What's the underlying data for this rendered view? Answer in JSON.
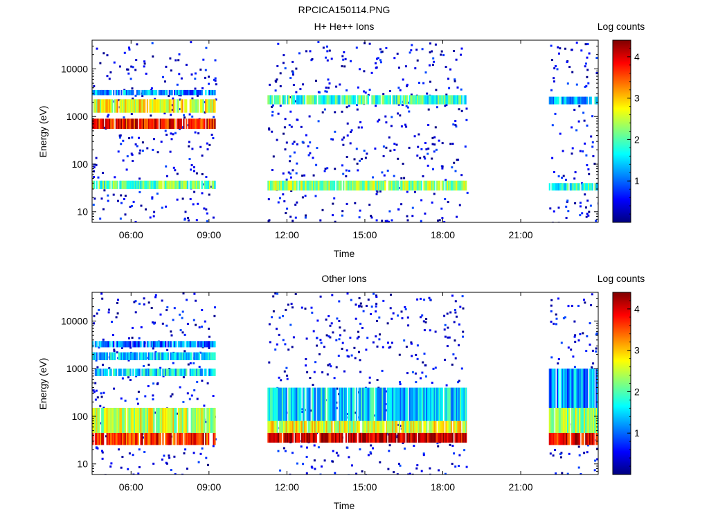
{
  "figure_title": "RPCICA150114.PNG",
  "colors": {
    "colormap": [
      "#00007f",
      "#0000ff",
      "#007fff",
      "#00ffff",
      "#7fff7f",
      "#ffff00",
      "#ff7f00",
      "#ff0000",
      "#7f0000"
    ],
    "background": "#ffffff",
    "axis": "#000000"
  },
  "chart_data": [
    {
      "type": "heatmap",
      "title": "H+ He++ Ions",
      "xlabel": "Time",
      "ylabel": "Energy (eV)",
      "y_scale": "log",
      "x_ticks": [
        "06:00",
        "09:00",
        "12:00",
        "15:00",
        "18:00",
        "21:00"
      ],
      "y_ticks": [
        "10",
        "100",
        "1000",
        "10000"
      ],
      "xlim": [
        "04:30",
        "23:59"
      ],
      "ylim": [
        6,
        40000
      ],
      "colorbar": {
        "label": "Log counts",
        "range": [
          0,
          4.4
        ],
        "ticks": [
          "1",
          "2",
          "3",
          "4"
        ]
      },
      "data_intervals": [
        [
          "04:30",
          "09:15"
        ],
        [
          "11:15",
          "18:55"
        ],
        [
          "22:05",
          "23:59"
        ]
      ],
      "bands": [
        {
          "interval": 0,
          "e_low": 30,
          "e_high": 45,
          "level": 2.0
        },
        {
          "interval": 0,
          "e_low": 550,
          "e_high": 900,
          "level": 3.8
        },
        {
          "interval": 0,
          "e_low": 1200,
          "e_high": 2300,
          "level": 2.7
        },
        {
          "interval": 0,
          "e_low": 2800,
          "e_high": 3600,
          "level": 1.2
        },
        {
          "interval": 1,
          "e_low": 28,
          "e_high": 45,
          "level": 2.3
        },
        {
          "interval": 1,
          "e_low": 1800,
          "e_high": 2800,
          "level": 1.9
        },
        {
          "interval": 2,
          "e_low": 28,
          "e_high": 40,
          "level": 1.8
        },
        {
          "interval": 2,
          "e_low": 1800,
          "e_high": 2600,
          "level": 1.4
        }
      ]
    },
    {
      "type": "heatmap",
      "title": "Other Ions",
      "xlabel": "Time",
      "ylabel": "Energy (eV)",
      "y_scale": "log",
      "x_ticks": [
        "06:00",
        "09:00",
        "12:00",
        "15:00",
        "18:00",
        "21:00"
      ],
      "y_ticks": [
        "10",
        "100",
        "1000",
        "10000"
      ],
      "xlim": [
        "04:30",
        "23:59"
      ],
      "ylim": [
        6,
        40000
      ],
      "colorbar": {
        "label": "Log counts",
        "range": [
          0,
          4.4
        ],
        "ticks": [
          "1",
          "2",
          "3",
          "4"
        ]
      },
      "data_intervals": [
        [
          "04:30",
          "09:15"
        ],
        [
          "11:15",
          "18:55"
        ],
        [
          "22:05",
          "23:59"
        ]
      ],
      "bands": [
        {
          "interval": 0,
          "e_low": 25,
          "e_high": 45,
          "level": 3.7
        },
        {
          "interval": 0,
          "e_low": 45,
          "e_high": 150,
          "level": 2.5
        },
        {
          "interval": 0,
          "e_low": 700,
          "e_high": 1000,
          "level": 1.6
        },
        {
          "interval": 0,
          "e_low": 1500,
          "e_high": 2200,
          "level": 1.5
        },
        {
          "interval": 0,
          "e_low": 2800,
          "e_high": 3800,
          "level": 1.0
        },
        {
          "interval": 1,
          "e_low": 28,
          "e_high": 45,
          "level": 4.1
        },
        {
          "interval": 1,
          "e_low": 45,
          "e_high": 80,
          "level": 2.6
        },
        {
          "interval": 1,
          "e_low": 80,
          "e_high": 400,
          "level": 1.5
        },
        {
          "interval": 2,
          "e_low": 25,
          "e_high": 45,
          "level": 3.9
        },
        {
          "interval": 2,
          "e_low": 45,
          "e_high": 150,
          "level": 2.3
        },
        {
          "interval": 2,
          "e_low": 150,
          "e_high": 1000,
          "level": 1.2
        }
      ]
    }
  ]
}
